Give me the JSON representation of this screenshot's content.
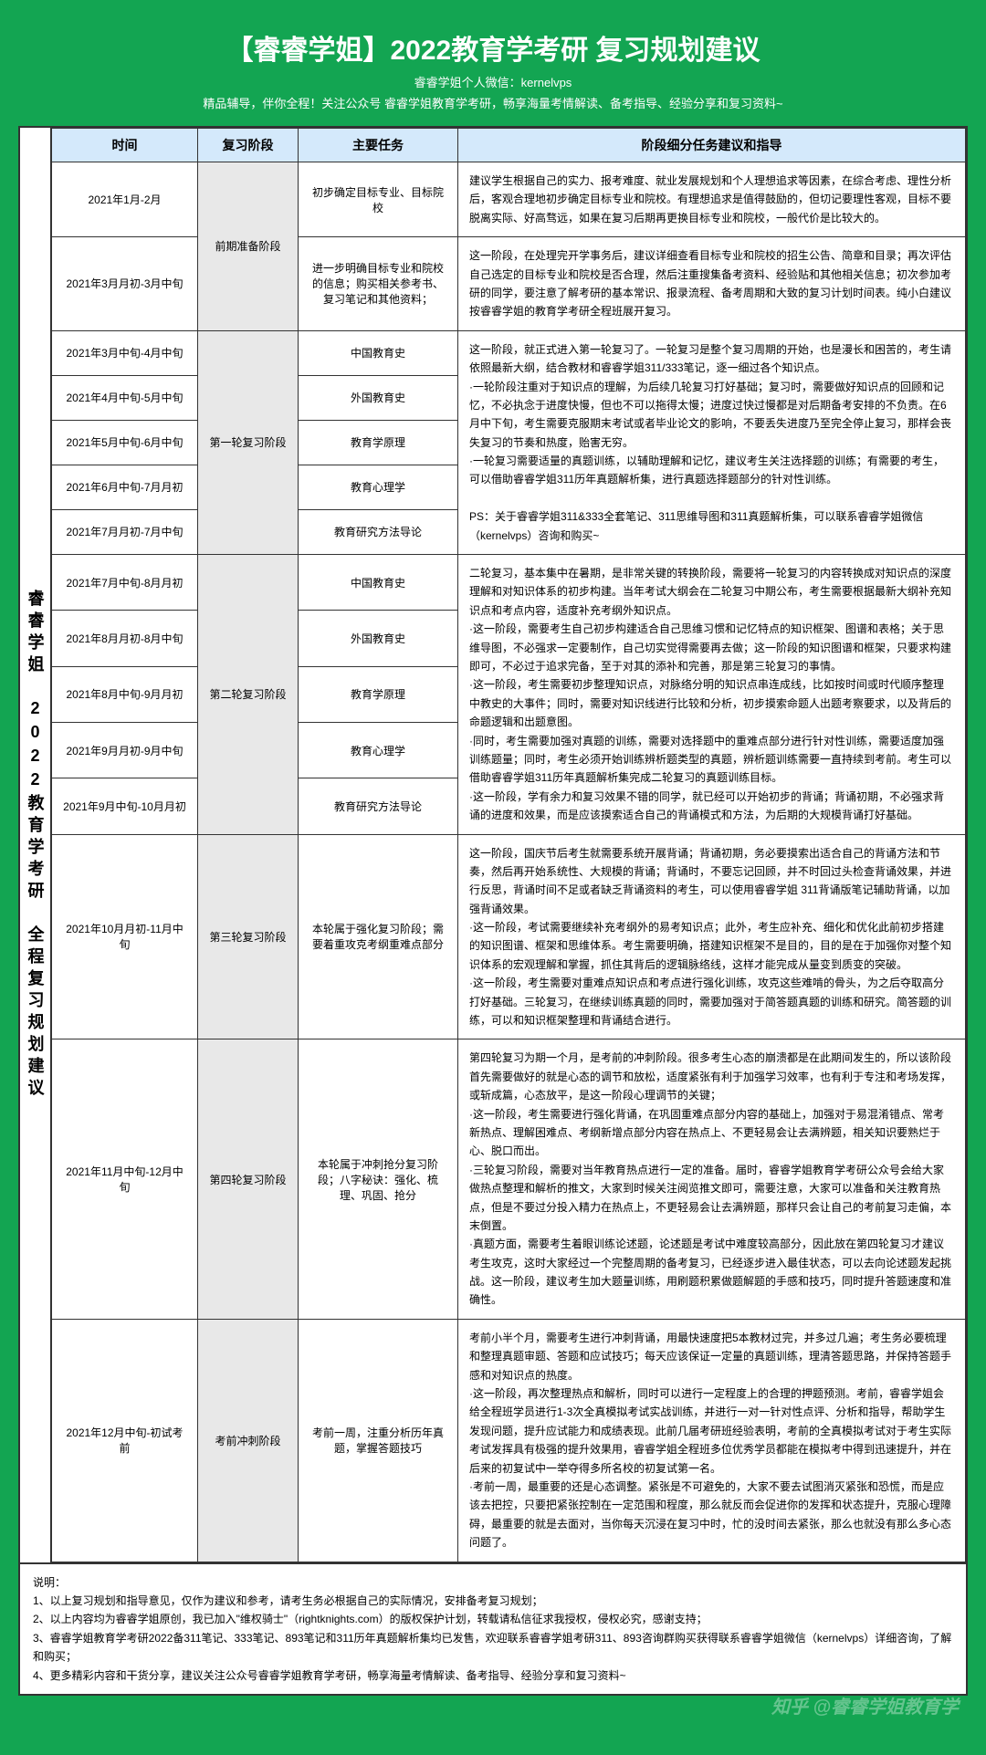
{
  "header": {
    "title": "【睿睿学姐】2022教育学考研 复习规划建议",
    "sub1": "睿睿学姐个人微信：kernelvps",
    "sub2": "精品辅导，伴你全程！关注公众号 睿睿学姐教育学考研，畅享海量考情解读、备考指导、经验分享和复习资料~"
  },
  "side": "睿睿学姐　2022教育学考研　全程复习规划建议",
  "cols": [
    "时间",
    "复习阶段",
    "主要任务",
    "阶段细分任务建议和指导"
  ],
  "rows": [
    {
      "time": "2021年1月-2月",
      "phase": "前期准备阶段",
      "phaseSpan": 2,
      "task": "初步确定目标专业、目标院校",
      "detail": "建议学生根据自己的实力、报考难度、就业发展规划和个人理想追求等因素，在综合考虑、理性分析后，客观合理地初步确定目标专业和院校。有理想追求是值得鼓励的，但切记要理性客观，目标不要脱离实际、好高骛远，如果在复习后期再更换目标专业和院校，一般代价是比较大的。"
    },
    {
      "time": "2021年3月月初-3月中旬",
      "task": "进一步明确目标专业和院校的信息；购买相关参考书、复习笔记和其他资料；",
      "detail": "这一阶段，在处理完开学事务后，建议详细查看目标专业和院校的招生公告、简章和目录；再次评估自己选定的目标专业和院校是否合理，然后注重搜集备考资料、经验贴和其他相关信息；初次参加考研的同学，要注意了解考研的基本常识、报录流程、备考周期和大致的复习计划时间表。纯小白建议按睿睿学姐的教育学考研全程班展开复习。"
    },
    {
      "time": "2021年3月中旬-4月中旬",
      "phase": "第一轮复习阶段",
      "phaseSpan": 5,
      "task": "中国教育史",
      "detail": "这一阶段，就正式进入第一轮复习了。一轮复习是整个复习周期的开始，也是漫长和困苦的，考生请依照最新大纲，结合教材和睿睿学姐311/333笔记，逐一细过各个知识点。\n·一轮阶段注重对于知识点的理解，为后续几轮复习打好基础；复习时，需要做好知识点的回顾和记忆，不必执念于进度快慢，但也不可以拖得太慢；进度过快过慢都是对后期备考安排的不负责。在6月中下旬，考生需要克服期末考试或者毕业论文的影响，不要丢失进度乃至完全停止复习，那样会丧失复习的节奏和热度，贻害无穷。\n·一轮复习需要适量的真题训练，以辅助理解和记忆，建议考生关注选择题的训练；有需要的考生，可以借助睿睿学姐311历年真题解析集，进行真题选择题部分的针对性训练。\n\nPS：关于睿睿学姐311&333全套笔记、311思维导图和311真题解析集，可以联系睿睿学姐微信（kernelvps）咨询和购买~",
      "detailSpan": 5
    },
    {
      "time": "2021年4月中旬-5月中旬",
      "task": "外国教育史"
    },
    {
      "time": "2021年5月中旬-6月中旬",
      "task": "教育学原理"
    },
    {
      "time": "2021年6月中旬-7月月初",
      "task": "教育心理学"
    },
    {
      "time": "2021年7月月初-7月中旬",
      "task": "教育研究方法导论"
    },
    {
      "time": "2021年7月中旬-8月月初",
      "phase": "第二轮复习阶段",
      "phaseSpan": 5,
      "task": "中国教育史",
      "detail": "二轮复习，基本集中在暑期，是非常关键的转换阶段，需要将一轮复习的内容转换成对知识点的深度理解和对知识体系的初步构建。当年考试大纲会在二轮复习中期公布，考生需要根据最新大纲补充知识点和考点内容，适度补充考纲外知识点。\n·这一阶段，需要考生自己初步构建适合自己思维习惯和记忆特点的知识框架、图谱和表格；关于思维导图，不必强求一定要制作，自己切实觉得需要再去做；这一阶段的知识图谱和框架，只要求构建即可，不必过于追求完备，至于对其的添补和完善，那是第三轮复习的事情。\n·这一阶段，考生需要初步整理知识点，对脉络分明的知识点串连成线，比如按时间或时代顺序整理中教史的大事件；同时，需要对知识线进行比较和分析，初步摸索命题人出题考察要求，以及背后的命题逻辑和出题意图。\n·同时，考生需要加强对真题的训练，需要对选择题中的重难点部分进行针对性训练，需要适度加强训练题量；同时，考生必须开始训练辨析题类型的真题，辨析题训练需要一直持续到考前。考生可以借助睿睿学姐311历年真题解析集完成二轮复习的真题训练目标。\n·这一阶段，学有余力和复习效果不错的同学，就已经可以开始初步的背诵；背诵初期，不必强求背诵的进度和效果，而是应该摸索适合自己的背诵模式和方法，为后期的大规模背诵打好基础。",
      "detailSpan": 5
    },
    {
      "time": "2021年8月月初-8月中旬",
      "task": "外国教育史"
    },
    {
      "time": "2021年8月中旬-9月月初",
      "task": "教育学原理"
    },
    {
      "time": "2021年9月月初-9月中旬",
      "task": "教育心理学"
    },
    {
      "time": "2021年9月中旬-10月月初",
      "task": "教育研究方法导论"
    },
    {
      "time": "2021年10月月初-11月中旬",
      "phase": "第三轮复习阶段",
      "phaseSpan": 1,
      "task": "本轮属于强化复习阶段；需要着重攻克考纲重难点部分",
      "detail": "这一阶段，国庆节后考生就需要系统开展背诵；背诵初期，务必要摸索出适合自己的背诵方法和节奏，然后再开始系统性、大规模的背诵；背诵时，不要忘记回顾，并不时回过头检查背诵效果，并进行反思，背诵时间不足或者缺乏背诵资料的考生，可以使用睿睿学姐 311背诵版笔记辅助背诵，以加强背诵效果。\n·这一阶段，考试需要继续补充考纲外的易考知识点；此外，考生应补充、细化和优化此前初步搭建的知识图谱、框架和思维体系。考生需要明确，搭建知识框架不是目的，目的是在于加强你对整个知识体系的宏观理解和掌握，抓住其背后的逻辑脉络线，这样才能完成从量变到质变的突破。\n·这一阶段，考生需要对重难点知识点和考点进行强化训练，攻克这些难啃的骨头，为之后夺取高分打好基础。三轮复习，在继续训练真题的同时，需要加强对于简答题真题的训练和研究。简答题的训练，可以和知识框架整理和背诵结合进行。"
    },
    {
      "time": "2021年11月中旬-12月中旬",
      "phase": "第四轮复习阶段",
      "phaseSpan": 1,
      "task": "本轮属于冲刺抢分复习阶段；八字秘诀：强化、梳理、巩固、抢分",
      "detail": "第四轮复习为期一个月，是考前的冲刺阶段。很多考生心态的崩溃都是在此期间发生的，所以该阶段首先需要做好的就是心态的调节和放松，适度紧张有利于加强学习效率，也有利于专注和考场发挥，或斩成篇，心态放平，是这一阶段心理调节的关键；\n·这一阶段，考生需要进行强化背诵，在巩固重难点部分内容的基础上，加强对于易混淆错点、常考新热点、理解困难点、考纲新增点部分内容在热点上、不更轻易会让去满辨题，相关知识要熟烂于心、脱口而出。\n·三轮复习阶段，需要对当年教育热点进行一定的准备。届时，睿睿学姐教育学考研公众号会给大家做热点整理和解析的推文，大家到时候关注阅览推文即可，需要注意，大家可以准备和关注教育热点，但是不要过分投入精力在热点上，不更轻易会让去满辨题，那样只会让自己的考前复习走偏，本末倒置。\n·真题方面，需要考生着眼训练论述题，论述题是考试中难度较高部分，因此放在第四轮复习才建议考生攻克，这时大家经过一个完整周期的备考复习，已经逐步进入最佳状态，可以去向论述题发起挑战。这一阶段，建议考生加大题量训练，用刷题积累做题解题的手感和技巧，同时提升答题速度和准确性。"
    },
    {
      "time": "2021年12月中旬-初试考前",
      "phase": "考前冲刺阶段",
      "phaseSpan": 1,
      "task": "考前一周，注重分析历年真题，掌握答题技巧",
      "detail": "考前小半个月，需要考生进行冲刺背诵，用最快速度把5本教材过完，并多过几遍；考生务必要梳理和整理真题审题、答题和应试技巧；每天应该保证一定量的真题训练，理清答题思路，并保持答题手感和对知识点的热度。\n·这一阶段，再次整理热点和解析，同时可以进行一定程度上的合理的押题预测。考前，睿睿学姐会给全程班学员进行1-3次全真模拟考试实战训练，并进行一对一针对性点评、分析和指导，帮助学生发现问题，提升应试能力和成绩表现。此前几届考研班经验表明，考前的全真模拟考试对于考生实际考试发挥具有极强的提升效果用，睿睿学姐全程班多位优秀学员都能在模拟考中得到迅速提升，并在后来的初复试中一举夺得多所名校的初复试第一名。\n·考前一周，最重要的还是心态调整。紧张是不可避免的，大家不要去试图消灭紧张和恐慌，而是应该去把控，只要把紧张控制在一定范围和程度，那么就反而会促进你的发挥和状态提升，克服心理障碍，最重要的就是去面对，当你每天沉浸在复习中时，忙的没时间去紧张，那么也就没有那么多心态问题了。"
    }
  ],
  "notes": {
    "title": "说明：",
    "items": [
      "1、以上复习规划和指导意见，仅作为建议和参考，请考生务必根据自己的实际情况，安排备考复习规划；",
      "2、以上内容均为睿睿学姐原创，我已加入\"维权骑士\"（rightknights.com）的版权保护计划，转载请私信征求我授权，侵权必究，感谢支持；",
      "3、睿睿学姐教育学考研2022备311笔记、333笔记、893笔记和311历年真题解析集均已发售，欢迎联系睿睿学姐考研311、893咨询群购买获得联系睿睿学姐微信（kernelvps）详细咨询，了解和购买；",
      "4、更多精彩内容和干货分享，建议关注公众号睿睿学姐教育学考研，畅享海量考情解读、备考指导、经验分享和复习资料~"
    ]
  },
  "watermark": "知乎 @睿睿学姐教育学"
}
